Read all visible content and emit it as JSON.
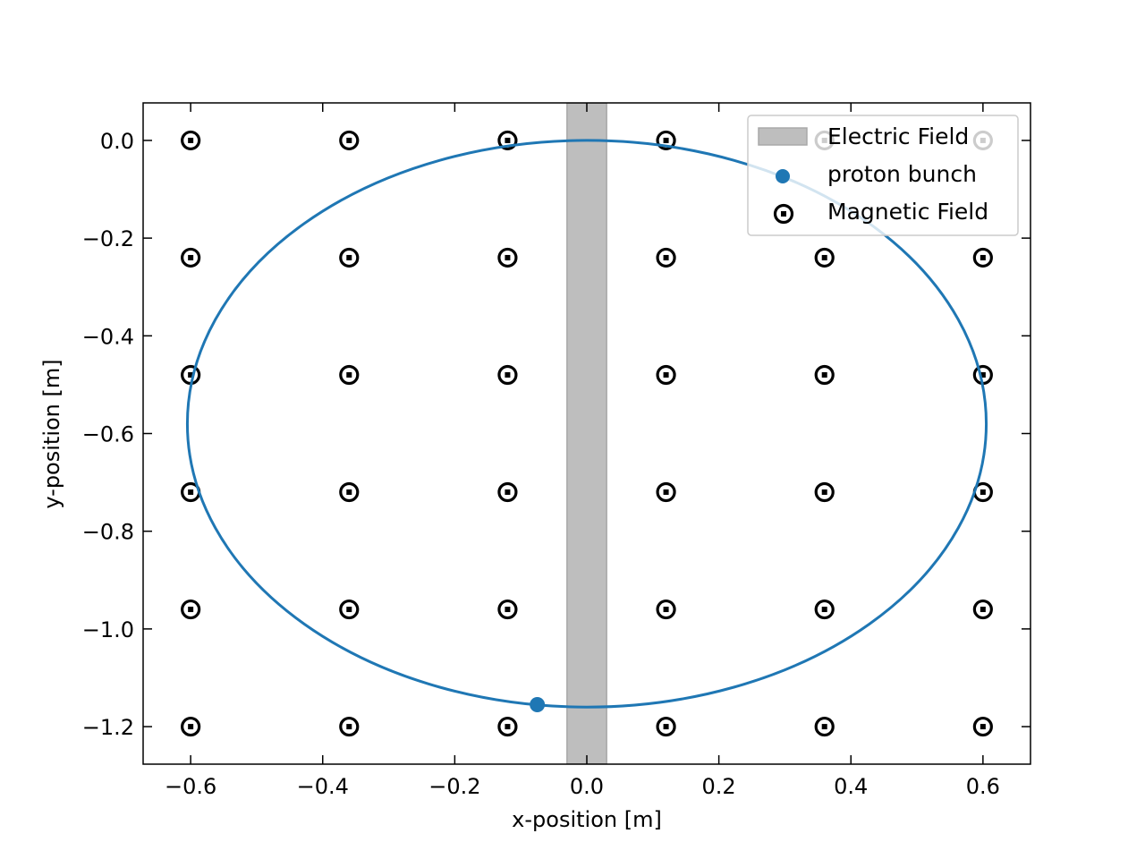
{
  "chart_data": {
    "type": "scatter",
    "title": "",
    "xlabel": "x-position [m]",
    "ylabel": "y-position [m]",
    "xlim": [
      -0.672,
      0.672
    ],
    "ylim": [
      -1.2768,
      0.0768
    ],
    "xticks": [
      -0.6,
      -0.4,
      -0.2,
      0.0,
      0.2,
      0.4,
      0.6
    ],
    "xtick_labels": [
      "−0.6",
      "−0.4",
      "−0.2",
      "0.0",
      "0.2",
      "0.4",
      "0.6"
    ],
    "yticks": [
      0.0,
      -0.2,
      -0.4,
      -0.6,
      -0.8,
      -1.0,
      -1.2
    ],
    "ytick_labels": [
      "0.0",
      "−0.2",
      "−0.4",
      "−0.6",
      "−0.8",
      "−1.0",
      "−1.2"
    ],
    "legend_position": "top-right",
    "electric_field": {
      "label": "Electric Field",
      "x_range": [
        -0.03,
        0.03
      ],
      "color": "#bebebe"
    },
    "trajectory": {
      "label": "trajectory",
      "center": [
        0.0,
        -0.58
      ],
      "radius_x": 0.605,
      "radius_y": 0.58,
      "color": "#1f77b4"
    },
    "proton_bunch": {
      "label": "proton bunch",
      "x": [
        -0.075
      ],
      "y": [
        -1.155
      ],
      "color": "#1f77b4"
    },
    "magnetic_field": {
      "label": "Magnetic Field",
      "x": [
        -0.6,
        -0.36,
        -0.12,
        0.12,
        0.36,
        0.6
      ],
      "y": [
        0.0,
        -0.24,
        -0.48,
        -0.72,
        -0.96,
        -1.2
      ],
      "color": "#000000"
    }
  }
}
